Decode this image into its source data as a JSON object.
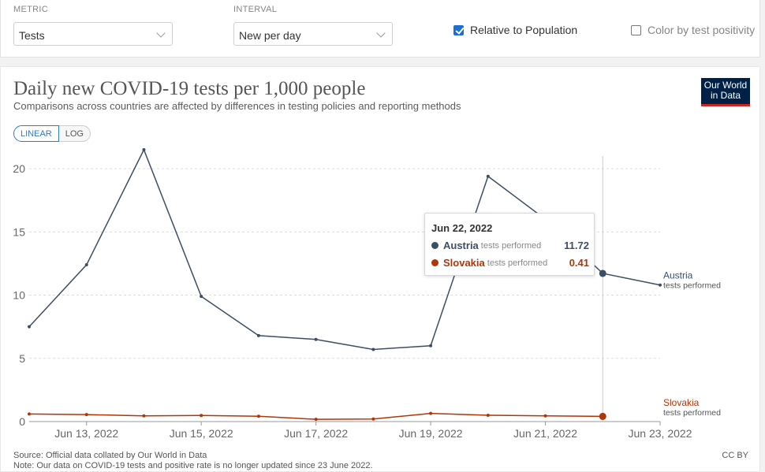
{
  "controls": {
    "metric_label": "METRIC",
    "metric_value": "Tests",
    "interval_label": "INTERVAL",
    "interval_value": "New per day",
    "relative_label": "Relative to Population",
    "relative_checked": true,
    "positivity_label": "Color by test positivity",
    "positivity_checked": false
  },
  "header": {
    "title": "Daily new COVID-19 tests per 1,000 people",
    "subtitle": "Comparisons across countries are affected by differences in testing policies and reporting methods",
    "logo_line1": "Our World",
    "logo_line2": "in Data"
  },
  "scale_toggle": {
    "linear": "LINEAR",
    "log": "LOG",
    "active": "linear"
  },
  "tooltip": {
    "date": "Jun 22, 2022",
    "rows": [
      {
        "name": "Austria",
        "sub": "tests performed",
        "value": "11.72",
        "color": "#3c4e66"
      },
      {
        "name": "Slovakia",
        "sub": "tests performed",
        "value": "0.41",
        "color": "#b13507"
      }
    ]
  },
  "footer": {
    "source": "Source: Official data collated by Our World in Data",
    "note": "Note: Our data on COVID-19 tests and positive rate is no longer updated since 23 June 2022.",
    "license": "CC BY"
  },
  "chart_data": {
    "type": "line",
    "title": "Daily new COVID-19 tests per 1,000 people",
    "ylim": [
      0,
      22
    ],
    "y_ticks": [
      0,
      5,
      10,
      15,
      20
    ],
    "x": [
      "2022-06-12",
      "2022-06-13",
      "2022-06-14",
      "2022-06-15",
      "2022-06-16",
      "2022-06-17",
      "2022-06-18",
      "2022-06-19",
      "2022-06-20",
      "2022-06-21",
      "2022-06-22",
      "2022-06-23"
    ],
    "x_tick_labels": [
      {
        "date": "2022-06-13",
        "label": "Jun 13, 2022"
      },
      {
        "date": "2022-06-15",
        "label": "Jun 15, 2022"
      },
      {
        "date": "2022-06-17",
        "label": "Jun 17, 2022"
      },
      {
        "date": "2022-06-19",
        "label": "Jun 19, 2022"
      },
      {
        "date": "2022-06-21",
        "label": "Jun 21, 2022"
      },
      {
        "date": "2022-06-23",
        "label": "Jun 23, 2022"
      }
    ],
    "hover_date": "2022-06-22",
    "grid": true,
    "series": [
      {
        "name": "Austria",
        "sublabel": "tests performed",
        "color": "#3c4e66",
        "values": [
          7.5,
          12.4,
          21.5,
          9.9,
          6.8,
          6.5,
          5.7,
          6.0,
          19.4,
          16.0,
          11.72,
          10.8
        ]
      },
      {
        "name": "Slovakia",
        "sublabel": "tests performed",
        "color": "#b13507",
        "values": [
          0.6,
          0.55,
          0.45,
          0.48,
          0.42,
          0.18,
          0.2,
          0.65,
          0.5,
          0.45,
          0.41,
          null
        ]
      }
    ]
  }
}
